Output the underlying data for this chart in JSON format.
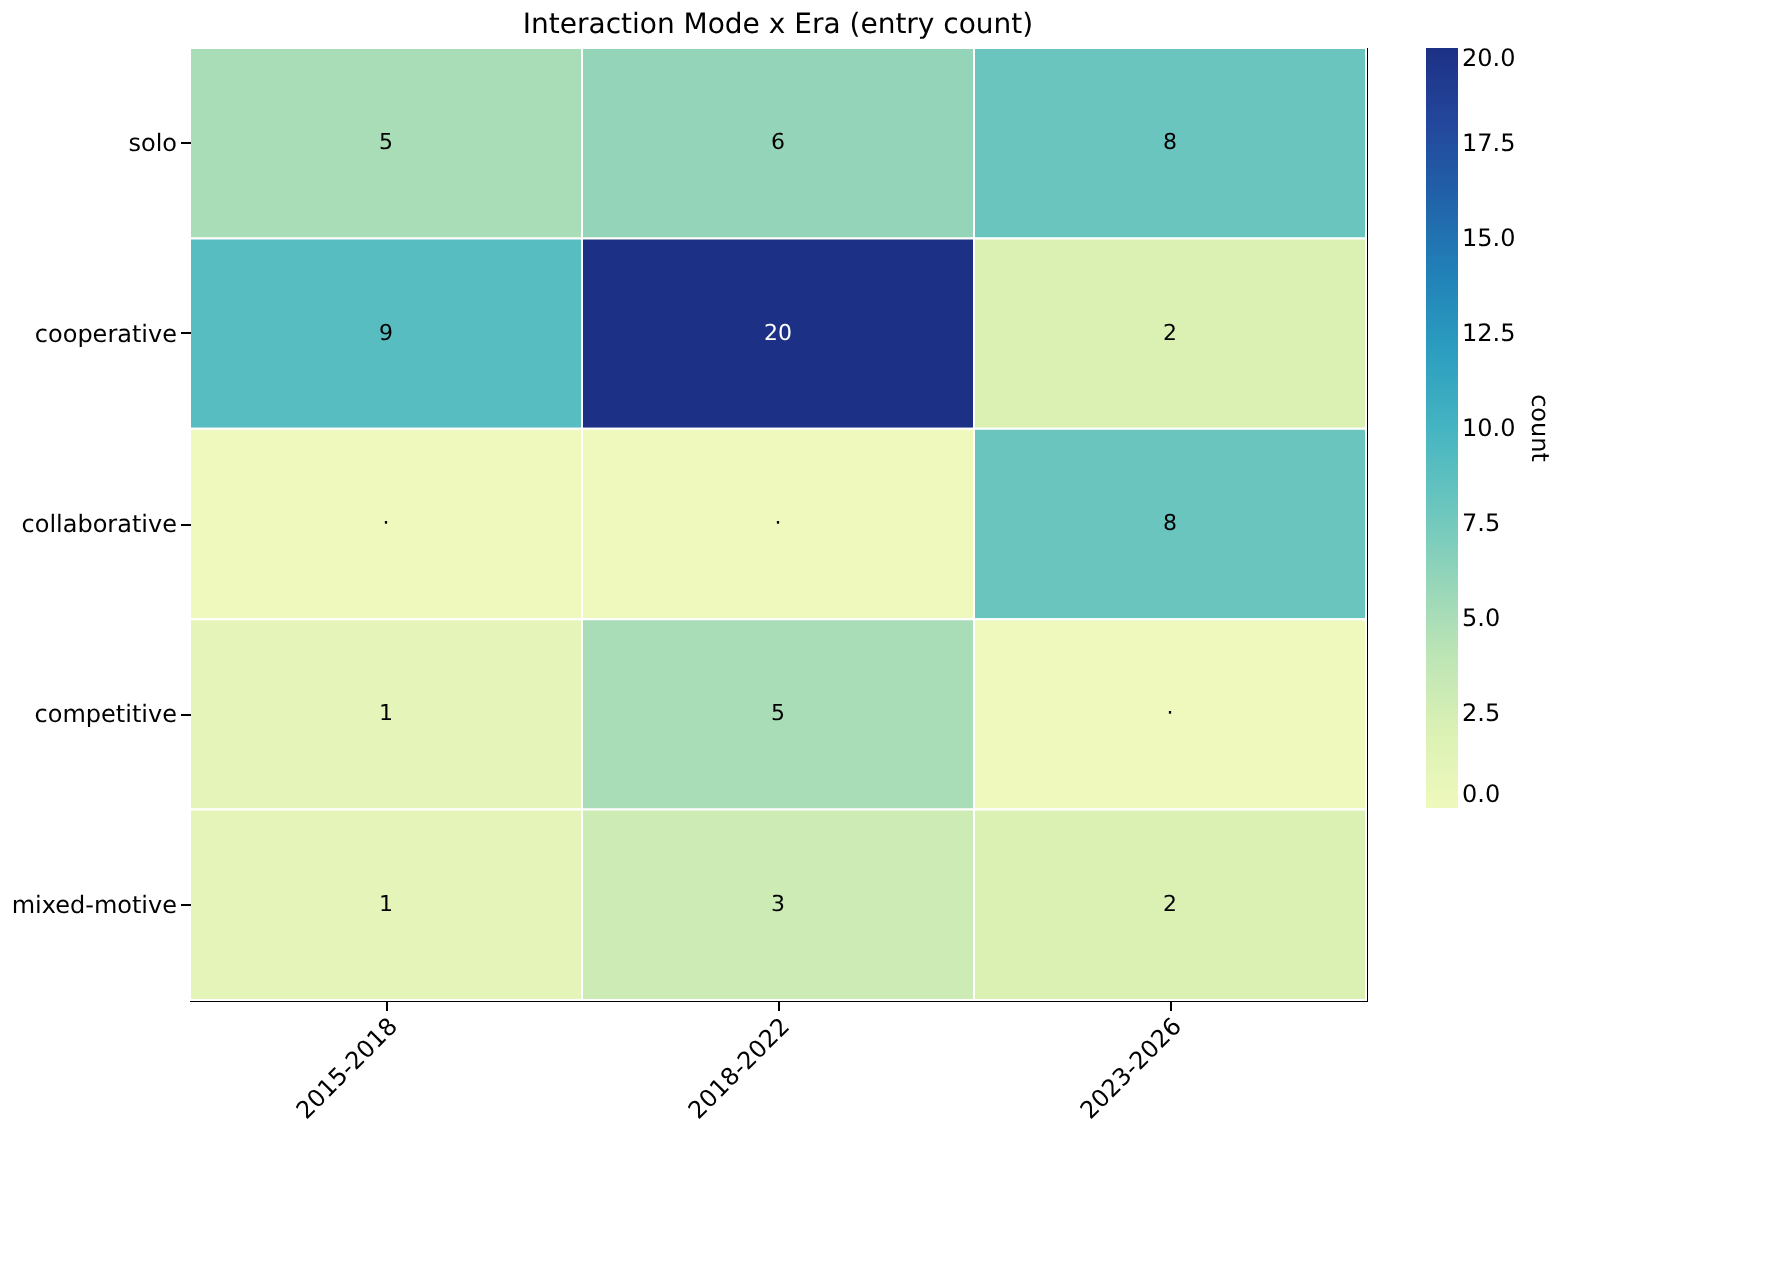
{
  "chart_data": {
    "type": "heatmap",
    "title": "Interaction Mode x Era (entry count)",
    "clabel": "count",
    "categories": [
      "2015-2018",
      "2018-2022",
      "2023-2026"
    ],
    "y_categories": [
      "solo",
      "cooperative",
      "collaborative",
      "competitive",
      "mixed-motive"
    ],
    "cells": [
      [
        5,
        6,
        8
      ],
      [
        9,
        20,
        2
      ],
      [
        0,
        0,
        8
      ],
      [
        1,
        5,
        0
      ],
      [
        1,
        3,
        2
      ]
    ],
    "cell_labels": [
      [
        "5",
        "6",
        "8"
      ],
      [
        "9",
        "20",
        "2"
      ],
      [
        "·",
        "·",
        "8"
      ],
      [
        "1",
        "5",
        "·"
      ],
      [
        "1",
        "3",
        "2"
      ]
    ],
    "clim": [
      0,
      20
    ],
    "cticks": [
      {
        "value": 0,
        "label": "0.0"
      },
      {
        "value": 2.5,
        "label": "2.5"
      },
      {
        "value": 5,
        "label": "5.0"
      },
      {
        "value": 7.5,
        "label": "7.5"
      },
      {
        "value": 10,
        "label": "10.0"
      },
      {
        "value": 12.5,
        "label": "12.5"
      },
      {
        "value": 15,
        "label": "15.0"
      },
      {
        "value": 17.5,
        "label": "17.5"
      },
      {
        "value": 20,
        "label": "20.0"
      }
    ],
    "data_labels": true
  }
}
